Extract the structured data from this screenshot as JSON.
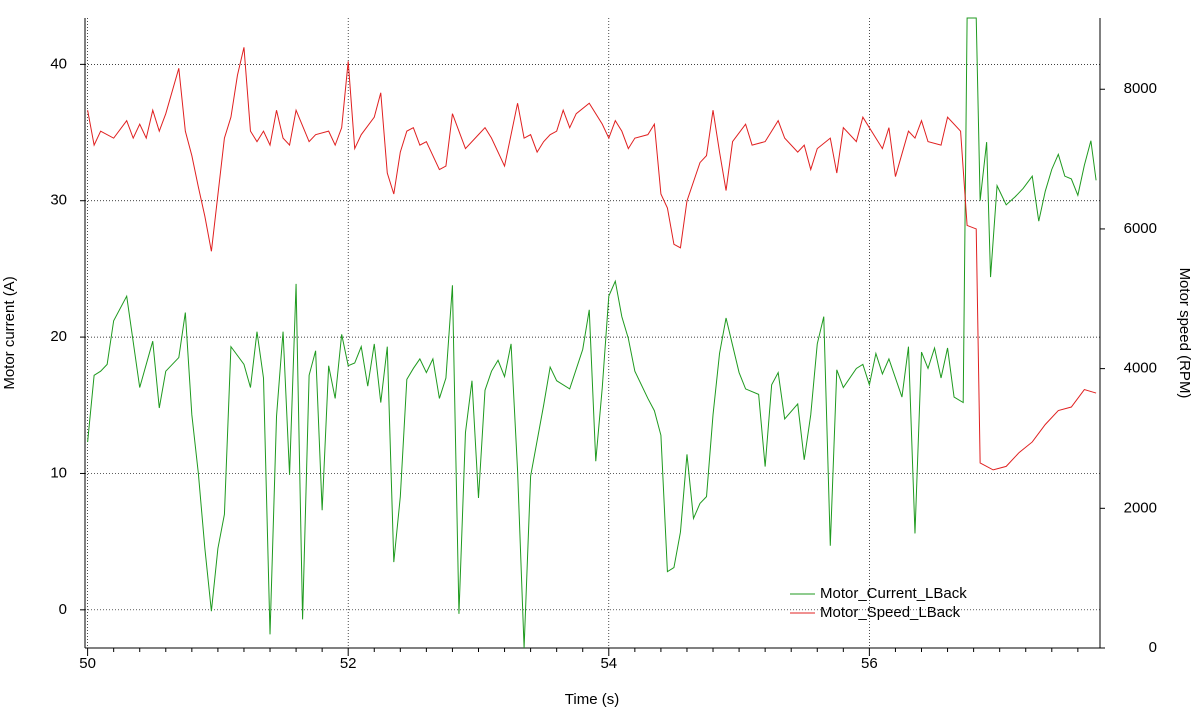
{
  "chart_data": {
    "type": "line",
    "x_label": "Time (s)",
    "y_label": "Motor current (A)",
    "y2_label": "Motor speed (RPM)",
    "xlim": [
      49.98,
      57.77
    ],
    "xticks": [
      50,
      52,
      54,
      56
    ],
    "ylim": [
      -2.8,
      43.4
    ],
    "yticks": [
      0,
      10,
      20,
      30,
      40
    ],
    "y2lim": [
      0,
      9020
    ],
    "y2ticks": [
      0,
      2000,
      4000,
      6000,
      8000
    ],
    "grid": true,
    "legend": "lower right",
    "series": [
      {
        "name": "Motor_Current_LBack",
        "color": "#1f9a1f",
        "axis": "y",
        "x": [
          50.0,
          50.05,
          50.1,
          50.15,
          50.2,
          50.3,
          50.4,
          50.5,
          50.55,
          50.6,
          50.7,
          50.75,
          50.8,
          50.85,
          50.9,
          50.95,
          51.0,
          51.05,
          51.1,
          51.2,
          51.25,
          51.3,
          51.35,
          51.4,
          51.45,
          51.5,
          51.55,
          51.6,
          51.65,
          51.7,
          51.75,
          51.8,
          51.85,
          51.9,
          51.95,
          52.0,
          52.05,
          52.1,
          52.15,
          52.2,
          52.25,
          52.3,
          52.35,
          52.4,
          52.45,
          52.5,
          52.55,
          52.6,
          52.65,
          52.7,
          52.75,
          52.8,
          52.85,
          52.9,
          52.95,
          53.0,
          53.05,
          53.1,
          53.15,
          53.2,
          53.25,
          53.3,
          53.35,
          53.4,
          53.5,
          53.55,
          53.6,
          53.7,
          53.8,
          53.85,
          53.9,
          53.95,
          54.0,
          54.05,
          54.1,
          54.15,
          54.2,
          54.3,
          54.35,
          54.4,
          54.45,
          54.5,
          54.55,
          54.6,
          54.65,
          54.7,
          54.75,
          54.8,
          54.85,
          54.9,
          55.0,
          55.05,
          55.15,
          55.2,
          55.25,
          55.3,
          55.35,
          55.45,
          55.5,
          55.55,
          55.6,
          55.65,
          55.7,
          55.75,
          55.8,
          55.9,
          55.95,
          56.0,
          56.05,
          56.1,
          56.15,
          56.25,
          56.3,
          56.35,
          56.4,
          56.45,
          56.5,
          56.55,
          56.6,
          56.65,
          56.72,
          56.75,
          56.82,
          56.85,
          56.9,
          56.93,
          56.98,
          57.05,
          57.12,
          57.18,
          57.25,
          57.3,
          57.35,
          57.4,
          57.45,
          57.5,
          57.55,
          57.6,
          57.65,
          57.7,
          57.74
        ],
        "values": [
          12.3,
          17.2,
          17.5,
          18,
          21.2,
          23,
          16.3,
          19.7,
          14.8,
          17.5,
          18.5,
          21.8,
          14.3,
          10,
          4.5,
          -0.1,
          4.5,
          7,
          19.3,
          18,
          16.3,
          20.4,
          17,
          -1.8,
          14.2,
          20.4,
          9.9,
          23.9,
          -0.7,
          17.2,
          19,
          7.3,
          17.9,
          15.5,
          20.2,
          17.9,
          18.1,
          19.3,
          16.4,
          19.5,
          15.2,
          19.3,
          3.5,
          8.3,
          16.9,
          17.7,
          18.4,
          17.4,
          18.4,
          15.5,
          17,
          23.8,
          -0.3,
          13,
          16.8,
          8.2,
          16.1,
          17.5,
          18.3,
          17.1,
          19.5,
          10.2,
          -2.8,
          9.8,
          15,
          17.8,
          16.8,
          16.2,
          19.1,
          22,
          10.9,
          16.3,
          23,
          24.1,
          21.5,
          19.9,
          17.5,
          15.5,
          14.6,
          12.8,
          2.8,
          3.1,
          5.7,
          11.4,
          6.7,
          7.8,
          8.3,
          14.3,
          18.8,
          21.4,
          17.4,
          16.2,
          15.8,
          10.5,
          16.5,
          17.4,
          14,
          15.1,
          11,
          14.3,
          19.5,
          21.5,
          4.7,
          17.6,
          16.3,
          17.7,
          18,
          16.5,
          18.8,
          17.3,
          18.4,
          15.6,
          19.3,
          5.6,
          18.9,
          17.7,
          19.2,
          17,
          19.2,
          15.6,
          15.2,
          43.4,
          43.4,
          30,
          34.3,
          24.4,
          31.1,
          29.7,
          30.3,
          30.9,
          31.8,
          28.5,
          30.7,
          32.3,
          33.4,
          31.8,
          31.6,
          30.4,
          32.6,
          34.4,
          31.5
        ]
      },
      {
        "name": "Motor_Speed_LBack",
        "color": "#e02020",
        "axis": "y2",
        "x": [
          50.0,
          50.05,
          50.1,
          50.2,
          50.3,
          50.35,
          50.4,
          50.45,
          50.5,
          50.55,
          50.6,
          50.7,
          50.75,
          50.8,
          50.85,
          50.9,
          50.95,
          51.05,
          51.1,
          51.15,
          51.2,
          51.25,
          51.3,
          51.35,
          51.4,
          51.45,
          51.5,
          51.55,
          51.6,
          51.7,
          51.75,
          51.85,
          51.9,
          51.95,
          52.0,
          52.05,
          52.1,
          52.2,
          52.25,
          52.3,
          52.35,
          52.4,
          52.45,
          52.5,
          52.55,
          52.6,
          52.7,
          52.75,
          52.8,
          52.9,
          53.0,
          53.05,
          53.1,
          53.2,
          53.3,
          53.35,
          53.4,
          53.45,
          53.5,
          53.55,
          53.6,
          53.65,
          53.7,
          53.75,
          53.85,
          53.95,
          54.0,
          54.05,
          54.1,
          54.15,
          54.2,
          54.3,
          54.35,
          54.4,
          54.45,
          54.5,
          54.55,
          54.6,
          54.7,
          54.75,
          54.8,
          54.85,
          54.9,
          54.95,
          55.05,
          55.1,
          55.2,
          55.3,
          55.35,
          55.45,
          55.5,
          55.55,
          55.6,
          55.7,
          55.75,
          55.8,
          55.9,
          55.95,
          56.05,
          56.1,
          56.15,
          56.2,
          56.3,
          56.35,
          56.4,
          56.45,
          56.55,
          56.6,
          56.7,
          56.75,
          56.82,
          56.85,
          56.95,
          57.05,
          57.15,
          57.25,
          57.35,
          57.45,
          57.55,
          57.65,
          57.74
        ],
        "values": [
          7700,
          7200,
          7400,
          7300,
          7550,
          7300,
          7500,
          7300,
          7700,
          7400,
          7650,
          8300,
          7400,
          7050,
          6600,
          6180,
          5680,
          7300,
          7600,
          8200,
          8600,
          7400,
          7250,
          7400,
          7200,
          7700,
          7300,
          7200,
          7700,
          7250,
          7350,
          7400,
          7200,
          7450,
          8400,
          7150,
          7350,
          7600,
          7950,
          6800,
          6500,
          7100,
          7400,
          7450,
          7200,
          7250,
          6850,
          6900,
          7650,
          7150,
          7350,
          7450,
          7300,
          6900,
          7800,
          7300,
          7350,
          7100,
          7250,
          7350,
          7400,
          7700,
          7450,
          7650,
          7800,
          7500,
          7300,
          7550,
          7400,
          7150,
          7300,
          7350,
          7500,
          6500,
          6300,
          5780,
          5730,
          6400,
          6950,
          7050,
          7700,
          7100,
          6550,
          7250,
          7500,
          7200,
          7250,
          7550,
          7300,
          7100,
          7200,
          6850,
          7150,
          7300,
          6800,
          7450,
          7250,
          7600,
          7300,
          7150,
          7450,
          6750,
          7400,
          7300,
          7550,
          7250,
          7200,
          7600,
          7400,
          6050,
          6000,
          2650,
          2550,
          2600,
          2800,
          2950,
          3200,
          3400,
          3450,
          3700,
          3650
        ]
      }
    ]
  }
}
